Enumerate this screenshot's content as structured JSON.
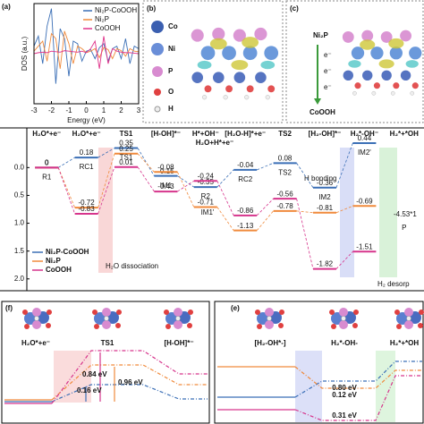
{
  "chart_data": [
    {
      "type": "line",
      "panel": "(a)",
      "x_label": "Energy (eV)",
      "y_label": "DOS (a.u.)",
      "x": [
        -3,
        -2.75,
        -2.5,
        -2.25,
        -2,
        -1.75,
        -1.5,
        -1.25,
        -1,
        -0.75,
        -0.5,
        -0.25,
        0,
        0.25,
        0.5,
        0.75,
        1,
        1.25,
        1.5,
        1.75,
        2,
        2.25,
        2.5,
        2.75,
        3
      ],
      "series": [
        {
          "name": "Ni₂P-CoOOH",
          "color": "#3b6fb6",
          "values": [
            0.15,
            0.35,
            -0.2,
            0.55,
            0.9,
            -0.6,
            0.5,
            0.3,
            -0.45,
            0.25,
            0.2,
            -0.15,
            0.05,
            0.08,
            -0.1,
            0.12,
            0.2,
            -0.15,
            0.1,
            0.15,
            -0.1,
            0.3,
            -0.2,
            0.15,
            0.1
          ]
        },
        {
          "name": "Ni₂P",
          "color": "#f08a3c",
          "values": [
            0.05,
            0.15,
            0.25,
            -0.15,
            0.4,
            0.3,
            -0.3,
            0.45,
            0.2,
            -0.2,
            0.15,
            0.1,
            0.02,
            0.05,
            0.1,
            -0.08,
            0.12,
            0.08,
            -0.1,
            0.1,
            0.06,
            -0.05,
            0.1,
            0.05,
            0.04
          ]
        },
        {
          "name": "CoOOH",
          "color": "#e0338a",
          "values": [
            0,
            0.02,
            0.03,
            0.02,
            0.05,
            0.04,
            0.03,
            0.06,
            0.05,
            0.04,
            0.03,
            0.05,
            0.02,
            0.1,
            0.25,
            -0.3,
            0.35,
            -0.2,
            0.1,
            0.05,
            0.03,
            0.02,
            0.02,
            0.01,
            0
          ]
        }
      ],
      "xlim": [
        -3,
        3
      ],
      "xticks": [
        -3,
        -2,
        -1,
        0,
        1,
        2,
        3
      ],
      "ylim": [
        -1,
        1
      ],
      "legend": "upper right"
    },
    {
      "type": "energy-profile",
      "categories": [
        "H₂O*+e⁻",
        "H₂O*+e⁻",
        "TS1",
        "[H-OH]*⁻",
        "H*+OH⁻",
        "[H₂O-H]*+e⁻",
        "TS2",
        "[H₂-OH]*⁻",
        "H₂*-OH⁻",
        "H₂*+*OH"
      ],
      "step_labels": [
        "R1",
        "RC1",
        "TS1",
        "IM1",
        "R2",
        "RC2",
        "TS2",
        "IM2",
        "IM2'",
        "P"
      ],
      "series": [
        {
          "name": "Ni₂P-CoOOH",
          "color": "#3b6fb6",
          "values": [
            0,
            0.18,
            0.35,
            -0.15,
            -0.35,
            -0.04,
            0.08,
            -0.36,
            0.44,
            null
          ]
        },
        {
          "name": "Ni₂P",
          "color": "#f08a3c",
          "values": [
            0,
            -0.72,
            0.25,
            -0.08,
            -0.71,
            -1.13,
            -0.78,
            -0.81,
            -0.69,
            null
          ]
        },
        {
          "name": "CoOOH",
          "color": "#d6348c",
          "values": [
            0,
            -0.83,
            0.01,
            -0.43,
            -0.24,
            -0.86,
            -0.56,
            -1.82,
            -1.51,
            null
          ]
        }
      ],
      "annotations": [
        "H₂O+H*+e⁻",
        "IM1'",
        "-4.53*1"
      ],
      "regions": [
        "H₂O dissociation",
        "H bonding",
        "H₂ desorp"
      ],
      "ylim": [
        -2.1,
        0.6
      ],
      "yticks": [
        {
          "value": 0,
          "label": "0.0"
        },
        {
          "value": -0.5,
          "label": "0.5"
        },
        {
          "value": -1,
          "label": "1.0"
        },
        {
          "value": -1.5,
          "label": "1.5"
        },
        {
          "value": -2,
          "label": "2.0"
        }
      ],
      "legend": "lower left"
    }
  ],
  "panels": {
    "b": {
      "label": "(b)",
      "elements": [
        "Co",
        "Ni",
        "P",
        "O",
        "H"
      ]
    },
    "c": {
      "label": "(c)",
      "top": "Ni₂P",
      "electrons": [
        "e⁻",
        "e⁻",
        "e⁻"
      ],
      "bottom": "CoOOH"
    },
    "f": {
      "label": "(f)",
      "states": [
        "H₂O*+e⁻",
        "TS1",
        "[H-OH]*⁻"
      ],
      "barriers": [
        "0.84 eV",
        "0.96 eV",
        "0.16 eV"
      ]
    },
    "e": {
      "label": "(e)",
      "states": [
        "[H₂-OH*-]",
        "H₂*-OH-",
        "H₂*+*OH"
      ],
      "barriers": [
        "0.80 eV",
        "0.12 eV",
        "0.31 eV"
      ]
    }
  }
}
